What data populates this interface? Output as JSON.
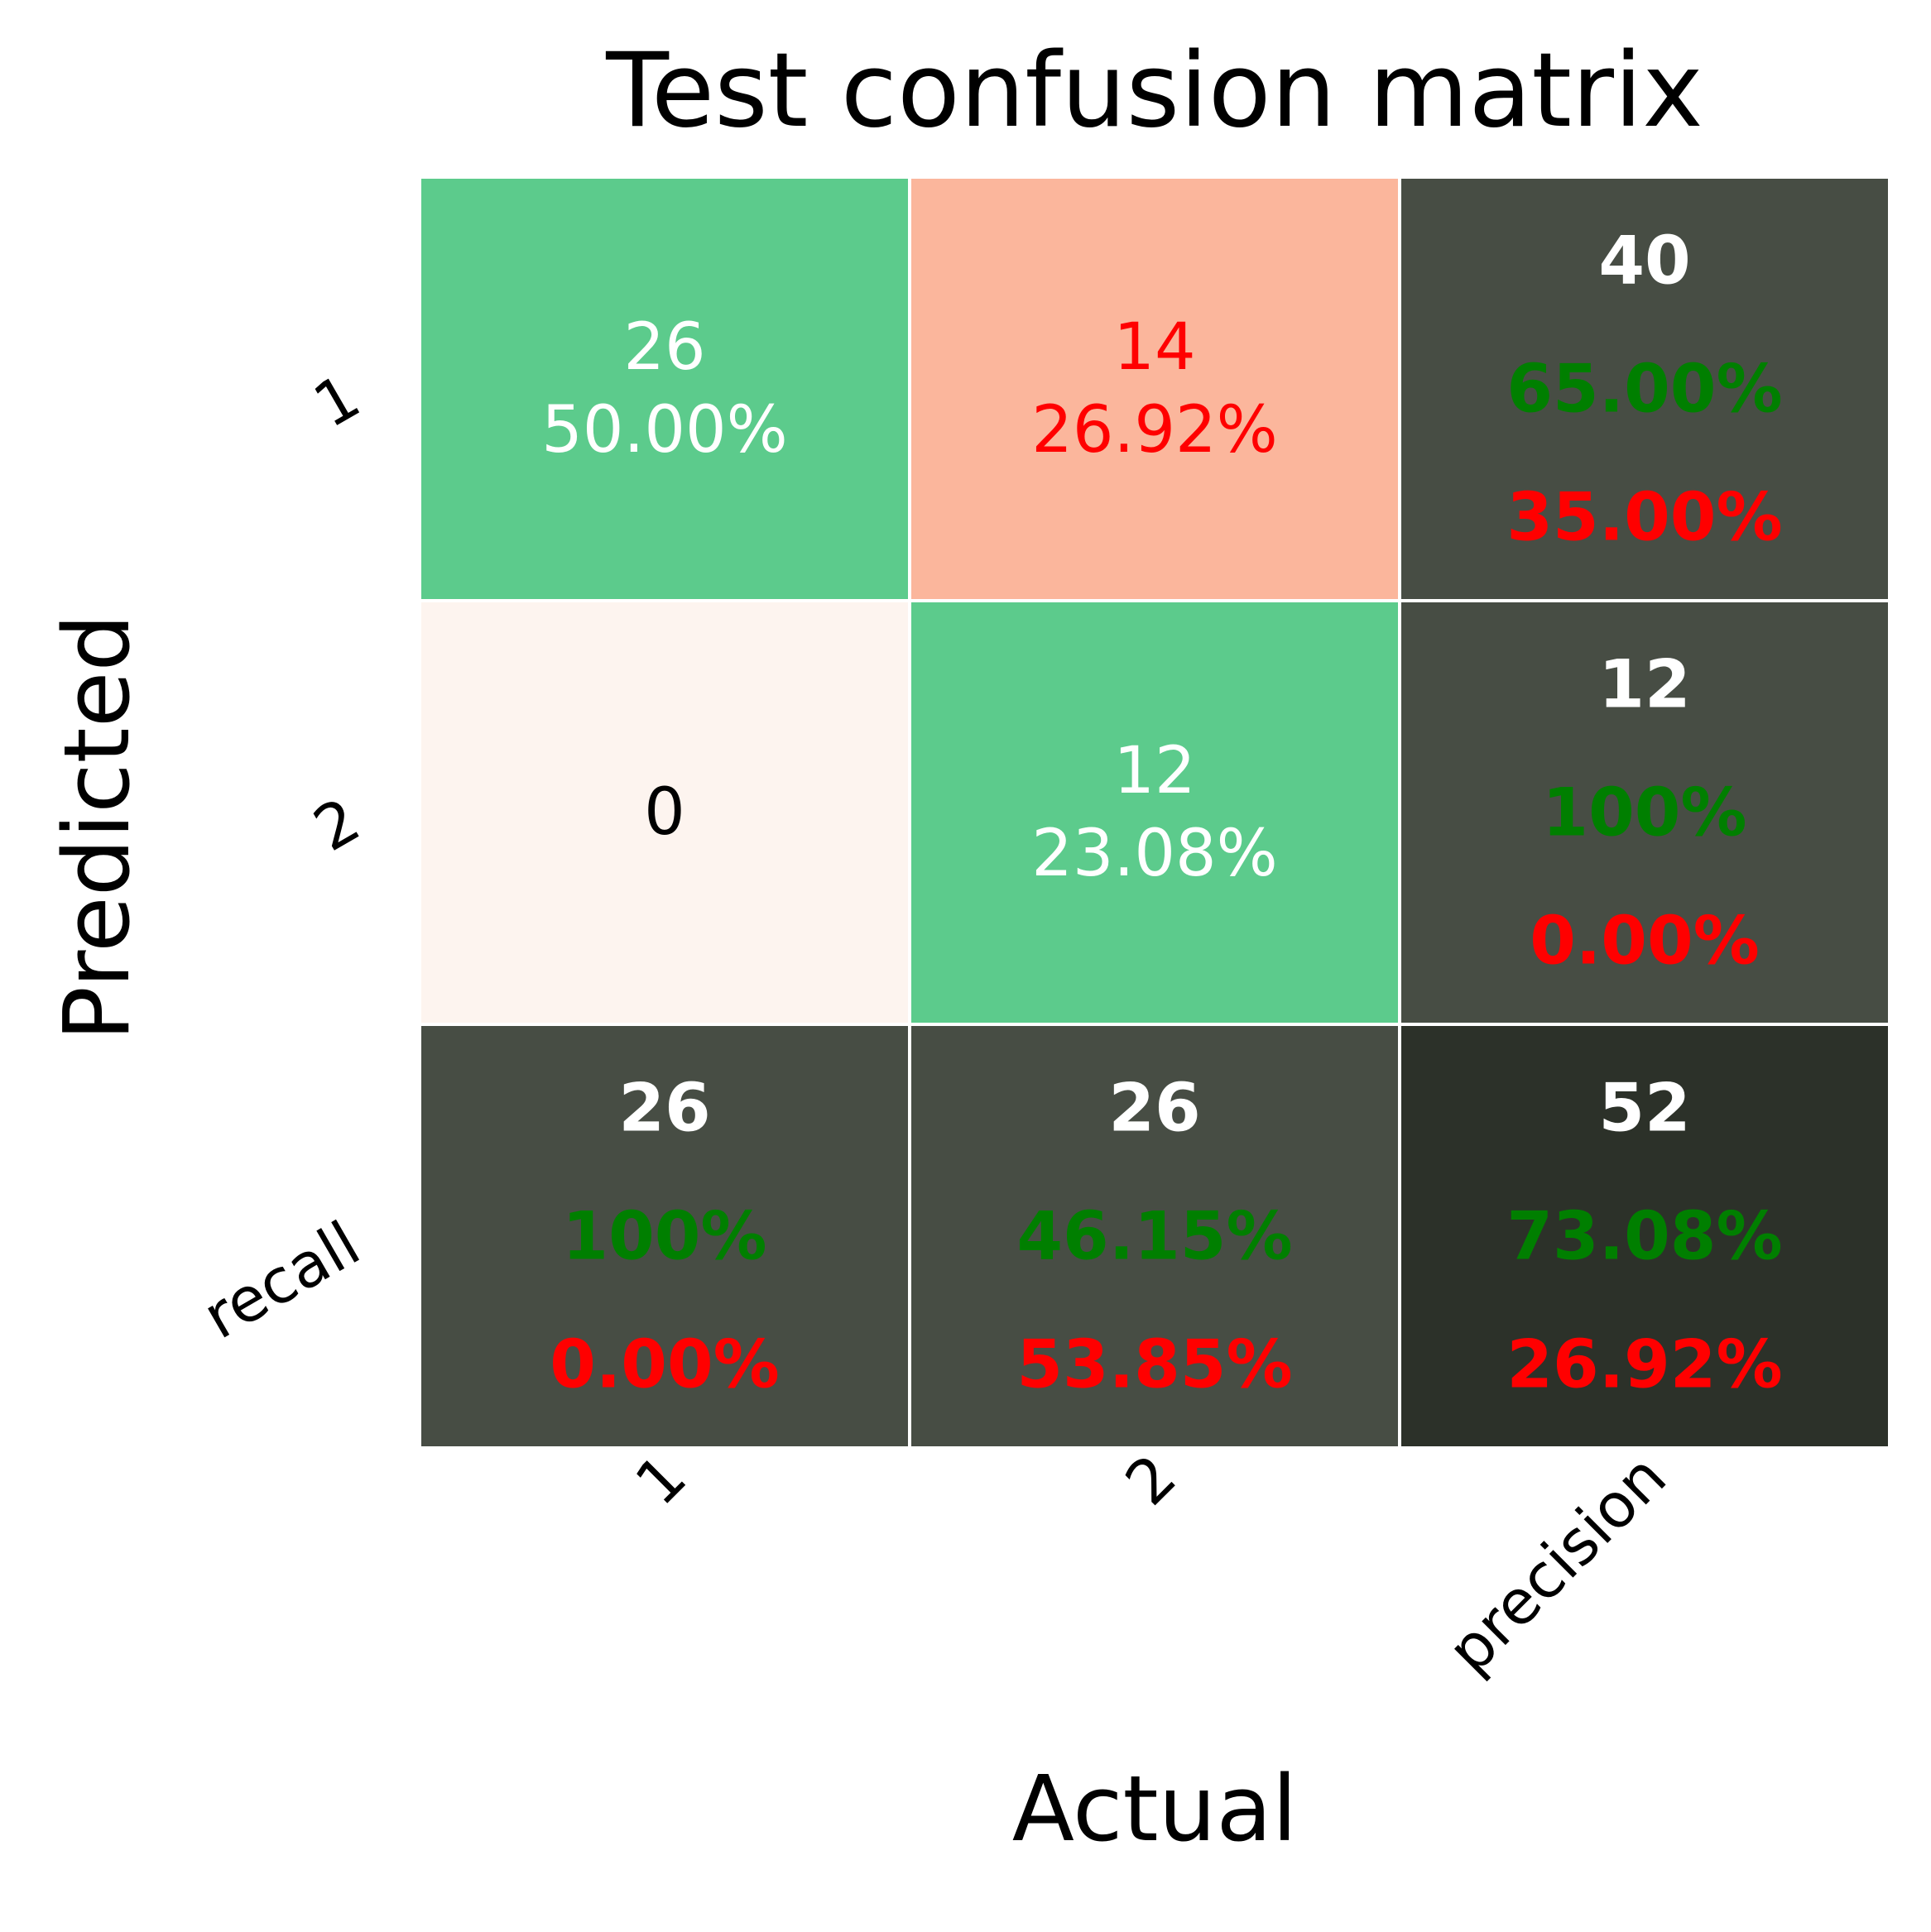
{
  "chart_data": {
    "type": "heatmap",
    "title": "Test confusion matrix",
    "xlabel": "Actual",
    "ylabel": "Predicted",
    "x_tick_labels": [
      "1",
      "2",
      "precision"
    ],
    "y_tick_labels": [
      "1",
      "2",
      "recall"
    ],
    "colors": {
      "correct": "#5ccb8c",
      "error_high": "#fbb69c",
      "error_zero": "#fdf4ef",
      "summary": "#474d44",
      "total": "#2c3129",
      "good_text": "#007f00",
      "bad_text": "#ff0000",
      "light_text": "#ffffff",
      "dark_text": "#000000"
    },
    "cells": [
      {
        "row": 0,
        "col": 0,
        "kind": "correct",
        "count": "26",
        "percent": "50.00%"
      },
      {
        "row": 0,
        "col": 1,
        "kind": "error_high",
        "count": "14",
        "percent": "26.92%"
      },
      {
        "row": 0,
        "col": 2,
        "kind": "summary",
        "count": "40",
        "good": "65.00%",
        "bad": "35.00%"
      },
      {
        "row": 1,
        "col": 0,
        "kind": "error_zero",
        "count": "0",
        "percent": ""
      },
      {
        "row": 1,
        "col": 1,
        "kind": "correct",
        "count": "12",
        "percent": "23.08%"
      },
      {
        "row": 1,
        "col": 2,
        "kind": "summary",
        "count": "12",
        "good": "100%",
        "bad": "0.00%"
      },
      {
        "row": 2,
        "col": 0,
        "kind": "summary",
        "count": "26",
        "good": "100%",
        "bad": "0.00%"
      },
      {
        "row": 2,
        "col": 1,
        "kind": "summary",
        "count": "26",
        "good": "46.15%",
        "bad": "53.85%"
      },
      {
        "row": 2,
        "col": 2,
        "kind": "total",
        "count": "52",
        "good": "73.08%",
        "bad": "26.92%"
      }
    ]
  }
}
